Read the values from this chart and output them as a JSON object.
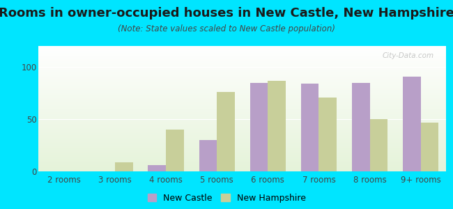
{
  "title": "Rooms in owner-occupied houses in New Castle, New Hampshire",
  "subtitle": "(Note: State values scaled to New Castle population)",
  "categories": [
    "2 rooms",
    "3 rooms",
    "4 rooms",
    "5 rooms",
    "6 rooms",
    "7 rooms",
    "8 rooms",
    "9+ rooms"
  ],
  "new_castle": [
    0,
    0,
    6,
    30,
    85,
    84,
    85,
    91
  ],
  "new_hampshire": [
    0,
    9,
    40,
    76,
    87,
    71,
    50,
    47
  ],
  "nc_color": "#b89fc8",
  "nh_color": "#c8cf9a",
  "background_outer": "#00e5ff",
  "plot_bg_top": "#f0f8f0",
  "plot_bg_bottom": "#d4ebc0",
  "ylim": [
    0,
    120
  ],
  "yticks": [
    0,
    50,
    100
  ],
  "watermark": "City-Data.com",
  "legend_nc": "New Castle",
  "legend_nh": "New Hampshire",
  "bar_width": 0.35,
  "title_fontsize": 13,
  "subtitle_fontsize": 8.5,
  "tick_fontsize": 8.5,
  "legend_fontsize": 9
}
